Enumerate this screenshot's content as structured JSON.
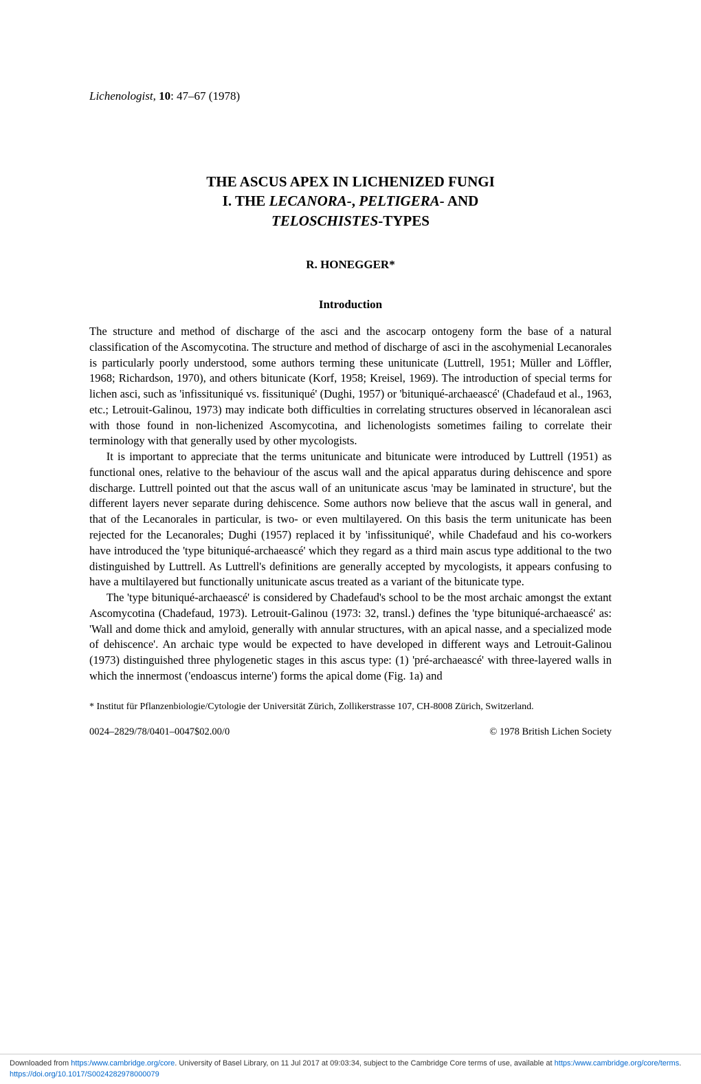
{
  "journal": {
    "name": "Lichenologist",
    "volume": "10",
    "pages": "47–67",
    "year": "(1978)"
  },
  "title": {
    "line1_prefix": "THE ASCUS APEX IN LICHENIZED FUNGI",
    "line2_prefix": "I. THE ",
    "line2_italic1": "LECANORA-",
    "line2_mid": ", ",
    "line2_italic2": "PELTIGERA-",
    "line2_suffix": " AND",
    "line3_italic": "TELOSCHISTES",
    "line3_suffix": "-TYPES"
  },
  "author": "R. HONEGGER*",
  "section_heading": "Introduction",
  "paragraphs": {
    "p1": "The structure and method of discharge of the asci and the ascocarp ontogeny form the base of a natural classification of the Ascomycotina. The structure and method of discharge of asci in the ascohymenial Lecanorales is particularly poorly understood, some authors terming these unitunicate (Luttrell, 1951; Müller and Löffler, 1968; Richardson, 1970), and others bitunicate (Korf, 1958; Kreisel, 1969). The introduction of special terms for lichen asci, such as 'infissituniqué vs. fissituniqué' (Dughi, 1957) or 'bituniqué-archaeascé' (Chadefaud et al., 1963, etc.; Letrouit-Galinou, 1973) may indicate both difficulties in correlating structures observed in lécanoralean asci with those found in non-lichenized Ascomycotina, and lichenologists sometimes failing to correlate their terminology with that generally used by other mycologists.",
    "p2": "It is important to appreciate that the terms unitunicate and bitunicate were introduced by Luttrell (1951) as functional ones, relative to the behaviour of the ascus wall and the apical apparatus during dehiscence and spore discharge. Luttrell pointed out that the ascus wall of an unitunicate ascus 'may be laminated in structure', but the different layers never separate during dehiscence. Some authors now believe that the ascus wall in general, and that of the Lecanorales in particular, is two- or even multilayered. On this basis the term unitunicate has been rejected for the Lecanorales; Dughi (1957) replaced it by 'infissituniqué', while Chadefaud and his co-workers have introduced the 'type bituniqué-archaeascé' which they regard as a third main ascus type additional to the two distinguished by Luttrell. As Luttrell's definitions are generally accepted by mycologists, it appears confusing to have a multilayered but functionally unitunicate ascus treated as a variant of the bitunicate type.",
    "p3": "The 'type bituniqué-archaeascé' is considered by Chadefaud's school to be the most archaic amongst the extant Ascomycotina (Chadefaud, 1973). Letrouit-Galinou (1973: 32, transl.) defines the 'type bituniqué-archaeascé' as: 'Wall and dome thick and amyloid, generally with annular structures, with an apical nasse, and a specialized mode of dehiscence'. An archaic type would be expected to have developed in different ways and Letrouit-Galinou (1973) distinguished three phylogenetic stages in this ascus type: (1) 'pré-archaeascé' with three-layered walls in which the innermost ('endoascus interne') forms the apical dome (Fig. 1a) and"
  },
  "footnote": "* Institut für Pflanzenbiologie/Cytologie der Universität Zürich, Zollikerstrasse 107, CH-8008 Zürich, Switzerland.",
  "bottom": {
    "left": "0024–2829/78/0401–0047$02.00/0",
    "right": "© 1978 British Lichen Society"
  },
  "banner": {
    "prefix": "Downloaded from ",
    "link1": "https:/www.cambridge.org/core",
    "mid1": ". University of Basel Library, on 11 Jul 2017 at 09:03:34, subject to the Cambridge Core terms of use, available at ",
    "link2": "https:/www.cambridge.org/core/terms",
    "mid2": ". ",
    "link3": "https://doi.org/10.1017/S0024282978000079"
  }
}
